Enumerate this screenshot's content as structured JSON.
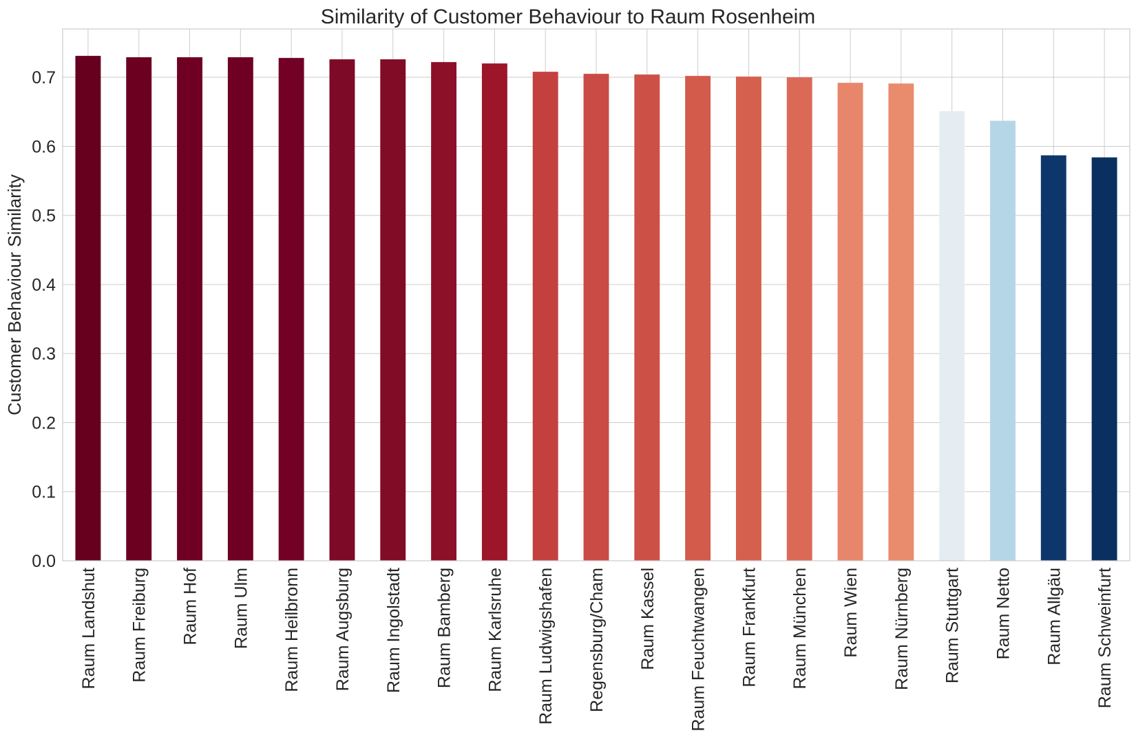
{
  "chart_data": {
    "type": "bar",
    "title": "Similarity of Customer Behaviour to Raum Rosenheim",
    "xlabel": "",
    "ylabel": "Customer Behaviour Similarity",
    "ylim": [
      0,
      0.77
    ],
    "yticks": [
      0.0,
      0.1,
      0.2,
      0.3,
      0.4,
      0.5,
      0.6,
      0.7
    ],
    "ytick_labels": [
      "0.0",
      "0.1",
      "0.2",
      "0.3",
      "0.4",
      "0.5",
      "0.6",
      "0.7"
    ],
    "grid": true,
    "categories": [
      "Raum Landshut",
      "Raum Freiburg",
      "Raum Hof",
      "Raum Ulm",
      "Raum Heilbronn",
      "Raum Augsburg",
      "Raum Ingolstadt",
      "Raum Bamberg",
      "Raum Karlsruhe",
      "Raum Ludwigshafen",
      "Regensburg/Cham",
      "Raum Kassel",
      "Raum Feuchtwangen",
      "Raum Frankfurt",
      "Raum München",
      "Raum Wien",
      "Raum Nürnberg",
      "Raum Stuttgart",
      "Raum Netto",
      "Raum Allgäu",
      "Raum Schweinfurt"
    ],
    "values": [
      0.731,
      0.729,
      0.729,
      0.729,
      0.728,
      0.726,
      0.726,
      0.722,
      0.72,
      0.708,
      0.705,
      0.704,
      0.702,
      0.701,
      0.7,
      0.692,
      0.691,
      0.651,
      0.637,
      0.587,
      0.584
    ],
    "colors": [
      "#67001f",
      "#6c0021",
      "#6f0024",
      "#6f0024",
      "#730025",
      "#7d0a26",
      "#800c26",
      "#8c1028",
      "#9c1529",
      "#c4403f",
      "#ca4b45",
      "#cc5046",
      "#d25b4c",
      "#d5604e",
      "#da6a56",
      "#e8866b",
      "#e98c6e",
      "#e5edf3",
      "#b5d6e6",
      "#0d376b",
      "#093060"
    ]
  }
}
